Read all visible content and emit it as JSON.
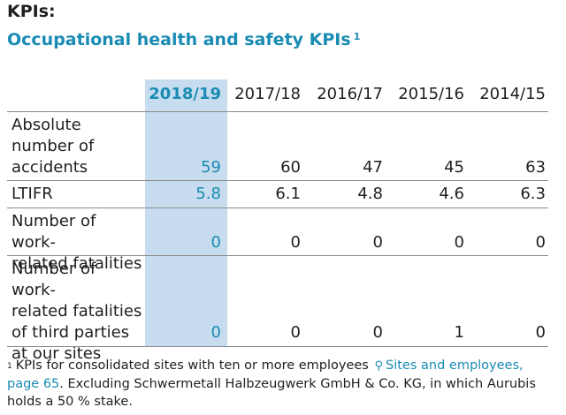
{
  "header": {
    "kpis_label": "KPIs:",
    "title": "Occupational health and safety KPIs",
    "title_footnote_mark": "1"
  },
  "table": {
    "columns": [
      "2018/19",
      "2017/18",
      "2016/17",
      "2015/16",
      "2014/15"
    ],
    "rows": [
      {
        "label": [
          "Absolute",
          "number of",
          "accidents"
        ],
        "values": [
          "59",
          "60",
          "47",
          "45",
          "63"
        ]
      },
      {
        "label": [
          "LTIFR"
        ],
        "values": [
          "5.8",
          "6.1",
          "4.8",
          "4.6",
          "6.3"
        ]
      },
      {
        "label": [
          "Number of work-",
          "related fatalities"
        ],
        "values": [
          "0",
          "0",
          "0",
          "0",
          "0"
        ]
      },
      {
        "label": [
          "Number of work-",
          "related fatalities",
          "of third parties",
          "at our sites"
        ],
        "values": [
          "0",
          "0",
          "0",
          "1",
          "0"
        ]
      }
    ]
  },
  "footnote": {
    "mark": "1",
    "text_before": "KPIs for consolidated sites with ten or more employees",
    "link_icon": "search-icon",
    "link_text": "Sites and employees, page 65",
    "text_after": ". Excluding Schwermetall Halbzeugwerk GmbH & Co. KG, in which Aurubis holds a 50 % stake."
  },
  "colors": {
    "accent": "#1a8bb3",
    "highlight_column": "#c7ddef",
    "rule": "#8a8a8a"
  }
}
